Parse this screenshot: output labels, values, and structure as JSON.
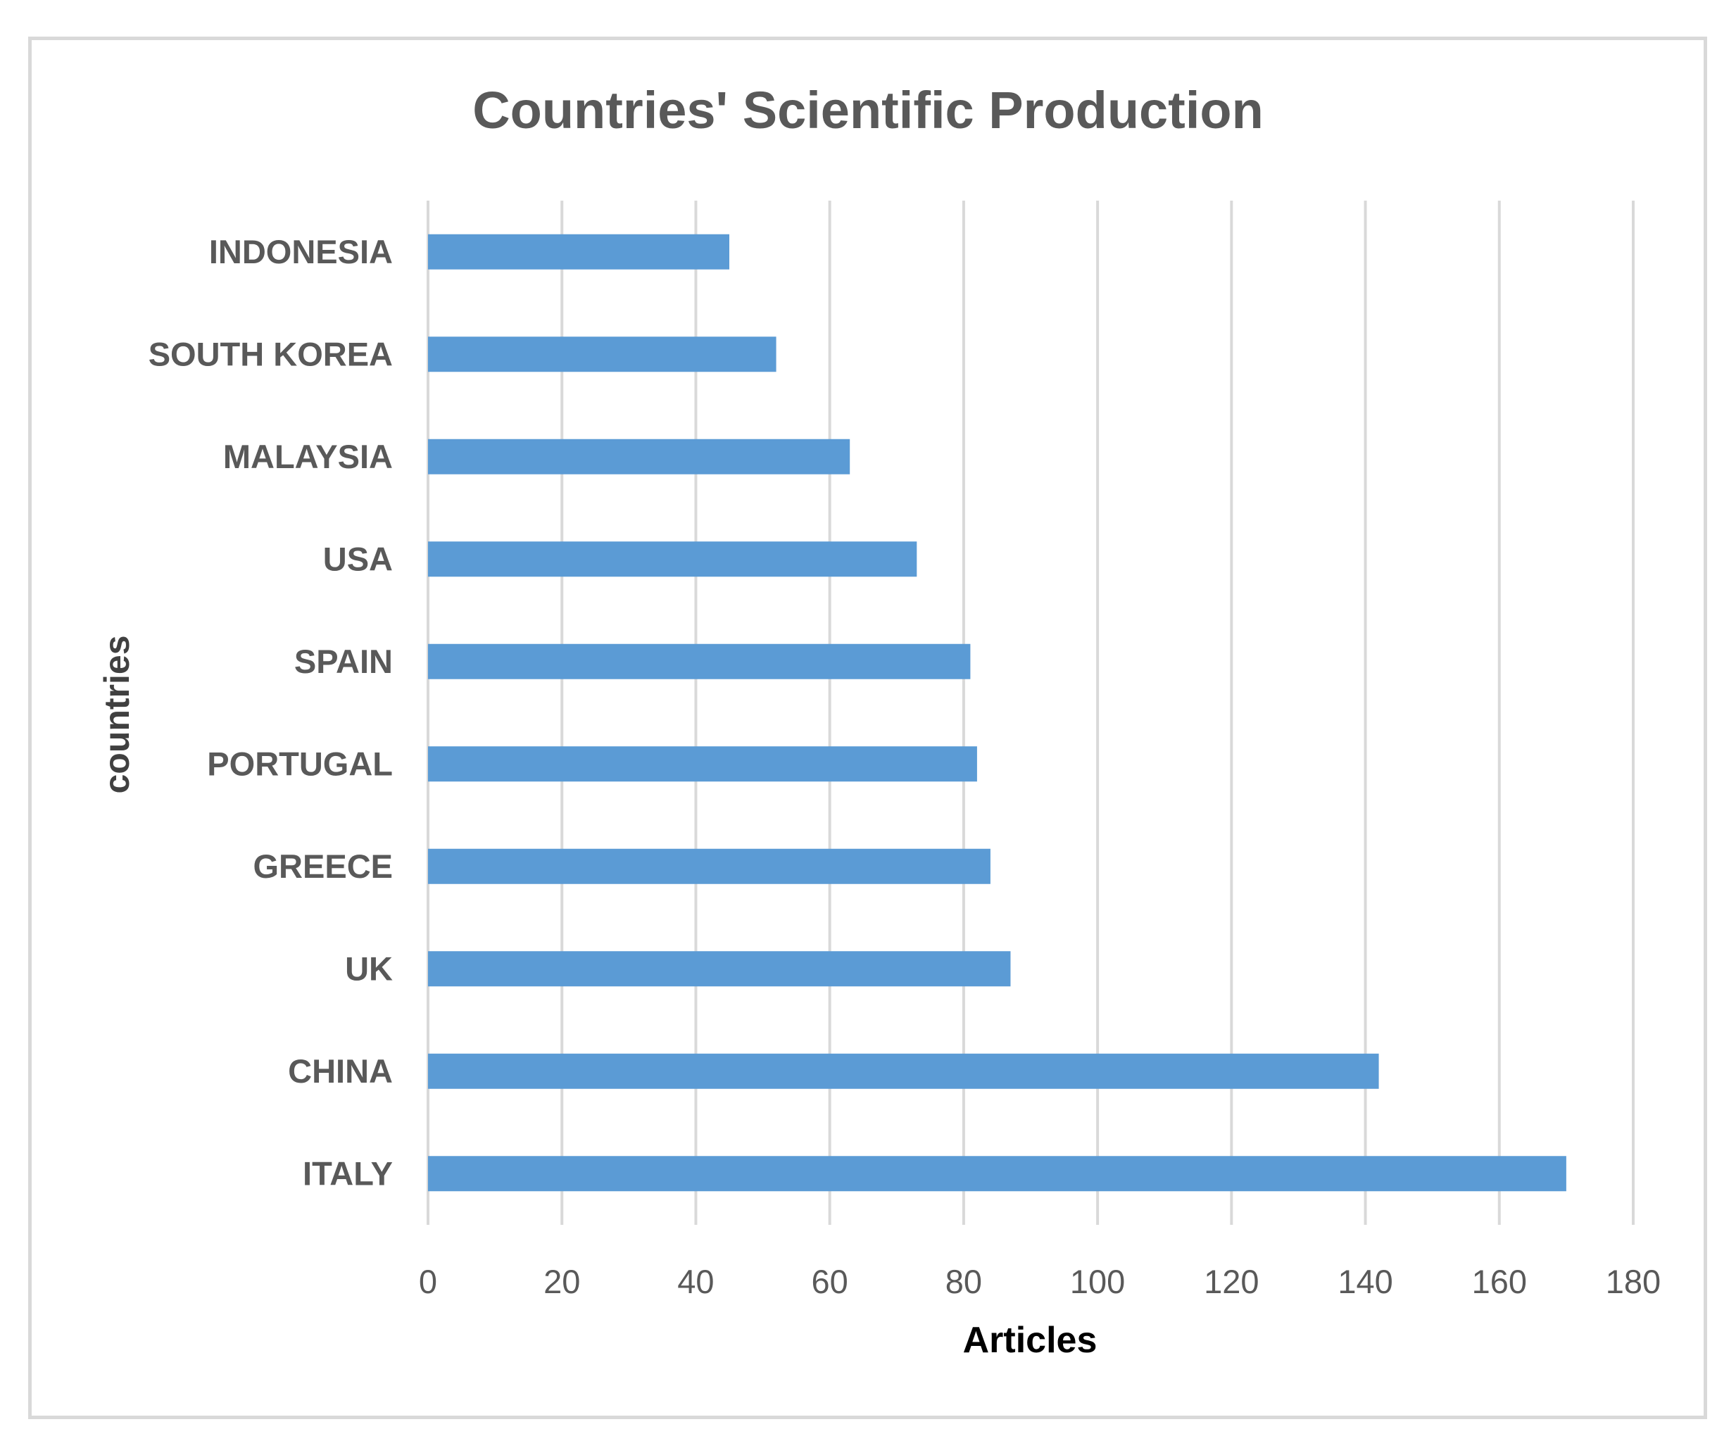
{
  "chart_data": {
    "type": "bar",
    "orientation": "horizontal",
    "title": "Countries' Scientific Production",
    "xlabel": "Articles",
    "ylabel": "countries",
    "categories": [
      "INDONESIA",
      "SOUTH KOREA",
      "MALAYSIA",
      "USA",
      "SPAIN",
      "PORTUGAL",
      "GREECE",
      "UK",
      "CHINA",
      "ITALY"
    ],
    "values": [
      45,
      52,
      63,
      73,
      81,
      82,
      84,
      87,
      142,
      170
    ],
    "xlim": [
      0,
      180
    ],
    "xticks": [
      "0",
      "20",
      "40",
      "60",
      "80",
      "100",
      "120",
      "140",
      "160",
      "180"
    ],
    "grid": true,
    "legend": "none",
    "colors": {
      "bar": "#5b9bd5",
      "grid": "#d9d9d9",
      "text": "#595959"
    }
  }
}
